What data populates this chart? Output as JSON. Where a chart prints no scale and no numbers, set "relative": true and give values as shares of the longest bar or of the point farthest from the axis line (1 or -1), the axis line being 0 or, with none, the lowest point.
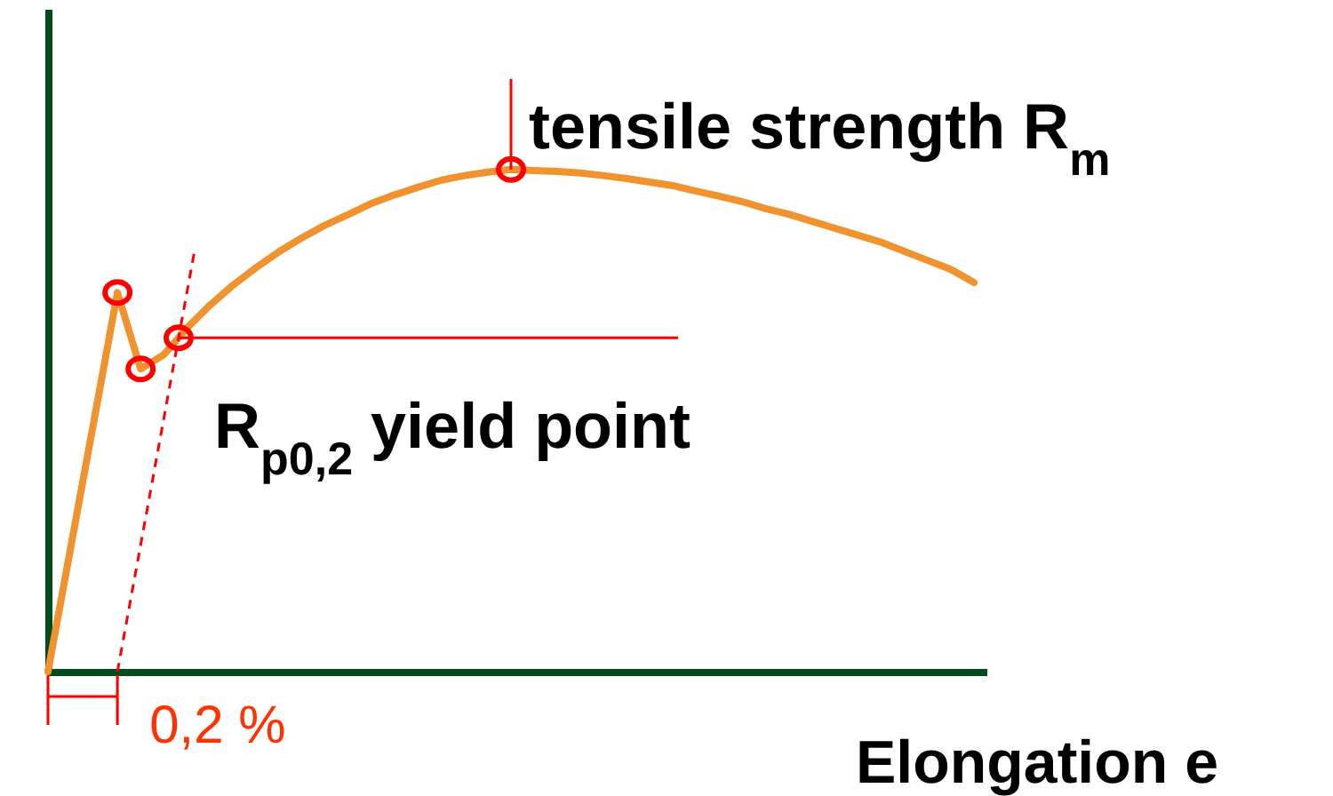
{
  "chart_data": {
    "type": "line",
    "relative": true,
    "xlabel": "Elongation e",
    "categories": [
      null,
      null,
      null,
      null,
      null,
      null,
      null,
      null,
      null,
      null,
      null,
      null,
      null,
      null,
      null,
      null,
      null,
      null,
      null,
      null,
      null,
      null,
      null,
      null,
      null,
      null,
      null,
      null,
      null,
      null,
      null,
      null,
      null,
      null,
      null,
      null,
      null,
      null,
      null,
      null,
      null
    ],
    "series": [
      {
        "color": "#f0922e",
        "values": [
          0,
          0.252,
          0.503,
          0.755,
          0.603,
          0.631,
          0.684,
          0.73,
          0.77,
          0.805,
          0.837,
          0.865,
          0.89,
          0.911,
          0.933,
          0.95,
          0.965,
          0.979,
          0.988,
          0.995,
          1,
          0.998,
          0.996,
          0.993,
          0.988,
          0.982,
          0.975,
          0.968,
          0.957,
          0.947,
          0.936,
          0.922,
          0.911,
          0.897,
          0.883,
          0.869,
          0.855,
          0.837,
          0.819,
          0.801,
          0.775
        ]
      }
    ],
    "annotations": [
      "tensile strength R$_{m}$",
      "R$_{p0,2}$ yield point",
      "0,2 %"
    ]
  }
}
